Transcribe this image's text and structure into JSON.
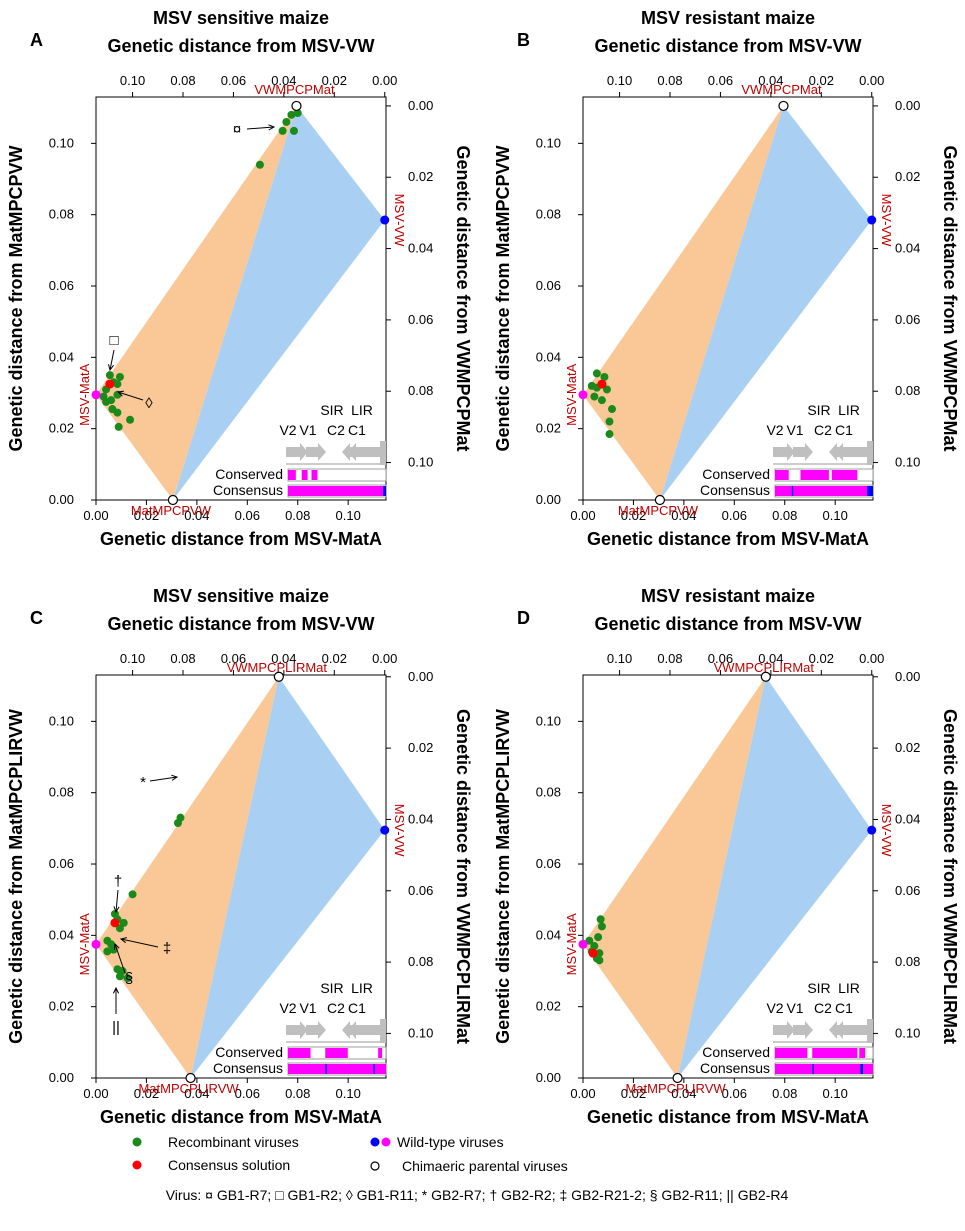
{
  "colors": {
    "orange_region": "#fac796",
    "blue_region": "#a9d0f3",
    "recombinant": "#1a8a1a",
    "consensus": "#ff0000",
    "wildtype_vw": "#0000ff",
    "wildtype_mata": "#ff00ff",
    "chimaeric": "#ffffff",
    "parent_label": "#c00000",
    "genome_map_gray": "#bfbfbf"
  },
  "panels": [
    {
      "letter": "A",
      "title": "MSV sensitive maize",
      "top_axis_title": "Genetic distance from MSV-VW",
      "bottom_axis_title": "Genetic distance from MSV-MatA",
      "left_axis_title": "Genetic distance from MatMPCPVW",
      "right_axis_title": "Genetic distance from VWMPCPMat",
      "x_ticks": [
        "0.00",
        "0.02",
        "0.04",
        "0.06",
        "0.08",
        "0.10"
      ],
      "top_ticks": [
        "0.10",
        "0.08",
        "0.06",
        "0.04",
        "0.02",
        "0.00"
      ],
      "y_ticks": [
        "0.00",
        "0.02",
        "0.04",
        "0.06",
        "0.08",
        "0.10"
      ],
      "right_ticks": [
        "0.00",
        "0.02",
        "0.04",
        "0.06",
        "0.08",
        "0.10"
      ],
      "labels": {
        "top_parent": "VWMPCPMat",
        "bottom_parent": "MatMPCPVW",
        "right_wt": "MSV-VW",
        "left_wt": "MSV-MatA"
      },
      "markers": [
        "¤",
        "□",
        "◊"
      ],
      "genome": {
        "orf_labels": [
          "V2",
          "V1",
          "SIR",
          "C2",
          "C1",
          "LIR"
        ],
        "row1": "Conserved",
        "row2": "Consensus"
      }
    },
    {
      "letter": "B",
      "title": "MSV resistant maize",
      "top_axis_title": "Genetic distance from MSV-VW",
      "bottom_axis_title": "Genetic distance from MSV-MatA",
      "left_axis_title": "Genetic distance from MatMPCPVW",
      "right_axis_title": "Genetic distance from VWMPCPMat",
      "x_ticks": [
        "0.00",
        "0.02",
        "0.04",
        "0.06",
        "0.08",
        "0.10"
      ],
      "top_ticks": [
        "0.10",
        "0.08",
        "0.06",
        "0.04",
        "0.02",
        "0.00"
      ],
      "y_ticks": [
        "0.00",
        "0.02",
        "0.04",
        "0.06",
        "0.08",
        "0.10"
      ],
      "right_ticks": [
        "0.00",
        "0.02",
        "0.04",
        "0.06",
        "0.08",
        "0.10"
      ],
      "labels": {
        "top_parent": "VWMPCPMat",
        "bottom_parent": "MatMPCPVW",
        "right_wt": "MSV-VW",
        "left_wt": "MSV-MatA"
      },
      "markers": [],
      "genome": {
        "orf_labels": [
          "V2",
          "V1",
          "SIR",
          "C2",
          "C1",
          "LIR"
        ],
        "row1": "Conserved",
        "row2": "Consensus"
      }
    },
    {
      "letter": "C",
      "title": "MSV sensitive maize",
      "top_axis_title": "Genetic distance from MSV-VW",
      "bottom_axis_title": "Genetic distance from MSV-MatA",
      "left_axis_title": "Genetic distance from MatMPCPLIRVW",
      "right_axis_title": "Genetic distance from VWMPCPLIRMat",
      "x_ticks": [
        "0.00",
        "0.02",
        "0.04",
        "0.06",
        "0.08",
        "0.10"
      ],
      "top_ticks": [
        "0.10",
        "0.08",
        "0.06",
        "0.04",
        "0.02",
        "0.00"
      ],
      "y_ticks": [
        "0.00",
        "0.02",
        "0.04",
        "0.06",
        "0.08",
        "0.10"
      ],
      "right_ticks": [
        "0.00",
        "0.02",
        "0.04",
        "0.06",
        "0.08",
        "0.10"
      ],
      "labels": {
        "top_parent": "VWMPCPLIRMat",
        "bottom_parent": "MatMPCPLIRVW",
        "right_wt": "MSV-VW",
        "left_wt": "MSV-MatA"
      },
      "markers": [
        "*",
        "†",
        "‡",
        "§",
        "||"
      ],
      "genome": {
        "orf_labels": [
          "V2",
          "V1",
          "SIR",
          "C2",
          "C1",
          "LIR"
        ],
        "row1": "Conserved",
        "row2": "Consensus"
      }
    },
    {
      "letter": "D",
      "title": "MSV resistant maize",
      "top_axis_title": "Genetic distance from MSV-VW",
      "bottom_axis_title": "Genetic distance from MSV-MatA",
      "left_axis_title": "Genetic distance from MatMPCPLIRVW",
      "right_axis_title": "Genetic distance from VWMPCPLIRMat",
      "x_ticks": [
        "0.00",
        "0.02",
        "0.04",
        "0.06",
        "0.08",
        "0.10"
      ],
      "top_ticks": [
        "0.10",
        "0.08",
        "0.06",
        "0.04",
        "0.02",
        "0.00"
      ],
      "y_ticks": [
        "0.00",
        "0.02",
        "0.04",
        "0.06",
        "0.08",
        "0.10"
      ],
      "right_ticks": [
        "0.00",
        "0.02",
        "0.04",
        "0.06",
        "0.08",
        "0.10"
      ],
      "labels": {
        "top_parent": "VWMPCPLIRMat",
        "bottom_parent": "MatMPCPLIRVW",
        "right_wt": "MSV-VW",
        "left_wt": "MSV-MatA"
      },
      "markers": [],
      "genome": {
        "orf_labels": [
          "V2",
          "V1",
          "SIR",
          "C2",
          "C1",
          "LIR"
        ],
        "row1": "Conserved",
        "row2": "Consensus"
      }
    }
  ],
  "legend": {
    "recombinant": "Recombinant viruses",
    "consensus": "Consensus solution",
    "wildtype": "Wild-type viruses",
    "chimaeric": "Chimaeric parental viruses",
    "footnote": "Virus: ¤ GB1-R7; □ GB1-R2; ◊ GB1-R11; * GB2-R7; † GB2-R2; ‡ GB2-R21-2; § GB2-R11; || GB2-R4"
  },
  "chart_data": [
    {
      "panel": "A",
      "type": "scatter",
      "xlabel": "Genetic distance from MSV-MatA",
      "ylabel": "Genetic distance from MatMPCPVW",
      "xlim": [
        0,
        0.115
      ],
      "ylim": [
        0,
        0.113
      ],
      "regions": [
        {
          "name": "orange",
          "points": [
            [
              0.0,
              0.0295
            ],
            [
              0.0305,
              0.0
            ],
            [
              0.0795,
              0.1105
            ]
          ]
        },
        {
          "name": "blue",
          "points": [
            [
              0.0305,
              0.0
            ],
            [
              0.0795,
              0.1105
            ],
            [
              0.1145,
              0.0785
            ]
          ]
        }
      ],
      "wild_type": [
        {
          "x": 0.0,
          "y": 0.0295,
          "virus": "MSV-MatA",
          "color": "magenta"
        },
        {
          "x": 0.1145,
          "y": 0.0785,
          "virus": "MSV-VW",
          "color": "blue"
        }
      ],
      "chimaeric": [
        {
          "x": 0.0305,
          "y": 0.0
        },
        {
          "x": 0.0795,
          "y": 0.1105
        }
      ],
      "consensus": [
        {
          "x": 0.0055,
          "y": 0.0325
        }
      ],
      "recombinant": [
        {
          "x": 0.0055,
          "y": 0.035
        },
        {
          "x": 0.007,
          "y": 0.033
        },
        {
          "x": 0.004,
          "y": 0.031
        },
        {
          "x": 0.0085,
          "y": 0.0325
        },
        {
          "x": 0.0095,
          "y": 0.0345
        },
        {
          "x": 0.003,
          "y": 0.029
        },
        {
          "x": 0.006,
          "y": 0.028
        },
        {
          "x": 0.004,
          "y": 0.0275
        },
        {
          "x": 0.0085,
          "y": 0.0295
        },
        {
          "x": 0.0065,
          "y": 0.0255
        },
        {
          "x": 0.0085,
          "y": 0.0245
        },
        {
          "x": 0.0135,
          "y": 0.0225
        },
        {
          "x": 0.009,
          "y": 0.0205
        },
        {
          "x": 0.065,
          "y": 0.094
        },
        {
          "x": 0.074,
          "y": 0.1035
        },
        {
          "x": 0.0755,
          "y": 0.106
        },
        {
          "x": 0.0785,
          "y": 0.1035
        },
        {
          "x": 0.0775,
          "y": 0.108
        },
        {
          "x": 0.08,
          "y": 0.1085
        }
      ]
    },
    {
      "panel": "B",
      "type": "scatter",
      "xlabel": "Genetic distance from MSV-MatA",
      "ylabel": "Genetic distance from MatMPCPVW",
      "xlim": [
        0,
        0.115
      ],
      "ylim": [
        0,
        0.113
      ],
      "regions": [
        {
          "name": "orange",
          "points": [
            [
              0.0,
              0.0295
            ],
            [
              0.0305,
              0.0
            ],
            [
              0.0795,
              0.1105
            ]
          ]
        },
        {
          "name": "blue",
          "points": [
            [
              0.0305,
              0.0
            ],
            [
              0.0795,
              0.1105
            ],
            [
              0.1145,
              0.0785
            ]
          ]
        }
      ],
      "wild_type": [
        {
          "x": 0.0,
          "y": 0.0295,
          "virus": "MSV-MatA",
          "color": "magenta"
        },
        {
          "x": 0.1145,
          "y": 0.0785,
          "virus": "MSV-VW",
          "color": "blue"
        }
      ],
      "chimaeric": [
        {
          "x": 0.0305,
          "y": 0.0
        },
        {
          "x": 0.0795,
          "y": 0.1105
        }
      ],
      "consensus": [
        {
          "x": 0.0075,
          "y": 0.0325
        }
      ],
      "recombinant": [
        {
          "x": 0.0055,
          "y": 0.0355
        },
        {
          "x": 0.0085,
          "y": 0.0345
        },
        {
          "x": 0.0035,
          "y": 0.032
        },
        {
          "x": 0.0055,
          "y": 0.0315
        },
        {
          "x": 0.0095,
          "y": 0.031
        },
        {
          "x": 0.0045,
          "y": 0.029
        },
        {
          "x": 0.0075,
          "y": 0.028
        },
        {
          "x": 0.0115,
          "y": 0.0255
        },
        {
          "x": 0.0105,
          "y": 0.022
        },
        {
          "x": 0.0105,
          "y": 0.0185
        }
      ]
    },
    {
      "panel": "C",
      "type": "scatter",
      "xlabel": "Genetic distance from MSV-MatA",
      "ylabel": "Genetic distance from MatMPCPLIRVW",
      "xlim": [
        0,
        0.115
      ],
      "ylim": [
        0,
        0.113
      ],
      "regions": [
        {
          "name": "orange",
          "points": [
            [
              0.0,
              0.0375
            ],
            [
              0.0375,
              0.0
            ],
            [
              0.0725,
              0.1125
            ]
          ]
        },
        {
          "name": "blue",
          "points": [
            [
              0.0375,
              0.0
            ],
            [
              0.0725,
              0.1125
            ],
            [
              0.1145,
              0.0695
            ]
          ]
        }
      ],
      "wild_type": [
        {
          "x": 0.0,
          "y": 0.0375,
          "virus": "MSV-MatA",
          "color": "magenta"
        },
        {
          "x": 0.1145,
          "y": 0.0695,
          "virus": "MSV-VW",
          "color": "blue"
        }
      ],
      "chimaeric": [
        {
          "x": 0.0375,
          "y": 0.0
        },
        {
          "x": 0.0725,
          "y": 0.1125
        }
      ],
      "consensus": [
        {
          "x": 0.0075,
          "y": 0.0435
        }
      ],
      "recombinant": [
        {
          "x": 0.0325,
          "y": 0.0715
        },
        {
          "x": 0.0335,
          "y": 0.073
        },
        {
          "x": 0.0145,
          "y": 0.0515
        },
        {
          "x": 0.0075,
          "y": 0.046
        },
        {
          "x": 0.0085,
          "y": 0.0445
        },
        {
          "x": 0.011,
          "y": 0.0435
        },
        {
          "x": 0.0095,
          "y": 0.042
        },
        {
          "x": 0.0045,
          "y": 0.0385
        },
        {
          "x": 0.006,
          "y": 0.0375
        },
        {
          "x": 0.007,
          "y": 0.036
        },
        {
          "x": 0.0045,
          "y": 0.0355
        },
        {
          "x": 0.0085,
          "y": 0.0305
        },
        {
          "x": 0.0105,
          "y": 0.03
        },
        {
          "x": 0.0095,
          "y": 0.0285
        },
        {
          "x": 0.0125,
          "y": 0.028
        }
      ]
    },
    {
      "panel": "D",
      "type": "scatter",
      "xlabel": "Genetic distance from MSV-MatA",
      "ylabel": "Genetic distance from MatMPCPLIRVW",
      "xlim": [
        0,
        0.115
      ],
      "ylim": [
        0,
        0.113
      ],
      "regions": [
        {
          "name": "orange",
          "points": [
            [
              0.0,
              0.0375
            ],
            [
              0.0375,
              0.0
            ],
            [
              0.0725,
              0.1125
            ]
          ]
        },
        {
          "name": "blue",
          "points": [
            [
              0.0375,
              0.0
            ],
            [
              0.0725,
              0.1125
            ],
            [
              0.1145,
              0.0695
            ]
          ]
        }
      ],
      "wild_type": [
        {
          "x": 0.0,
          "y": 0.0375,
          "virus": "MSV-MatA",
          "color": "magenta"
        },
        {
          "x": 0.1145,
          "y": 0.0695,
          "virus": "MSV-VW",
          "color": "blue"
        }
      ],
      "chimaeric": [
        {
          "x": 0.0375,
          "y": 0.0
        },
        {
          "x": 0.0725,
          "y": 0.1125
        }
      ],
      "consensus": [
        {
          "x": 0.004,
          "y": 0.035
        }
      ],
      "recombinant": [
        {
          "x": 0.007,
          "y": 0.0445
        },
        {
          "x": 0.0075,
          "y": 0.0425
        },
        {
          "x": 0.006,
          "y": 0.0395
        },
        {
          "x": 0.0025,
          "y": 0.0385
        },
        {
          "x": 0.0045,
          "y": 0.037
        },
        {
          "x": 0.0035,
          "y": 0.0355
        },
        {
          "x": 0.0065,
          "y": 0.035
        },
        {
          "x": 0.0055,
          "y": 0.0335
        },
        {
          "x": 0.0065,
          "y": 0.033
        }
      ]
    }
  ]
}
